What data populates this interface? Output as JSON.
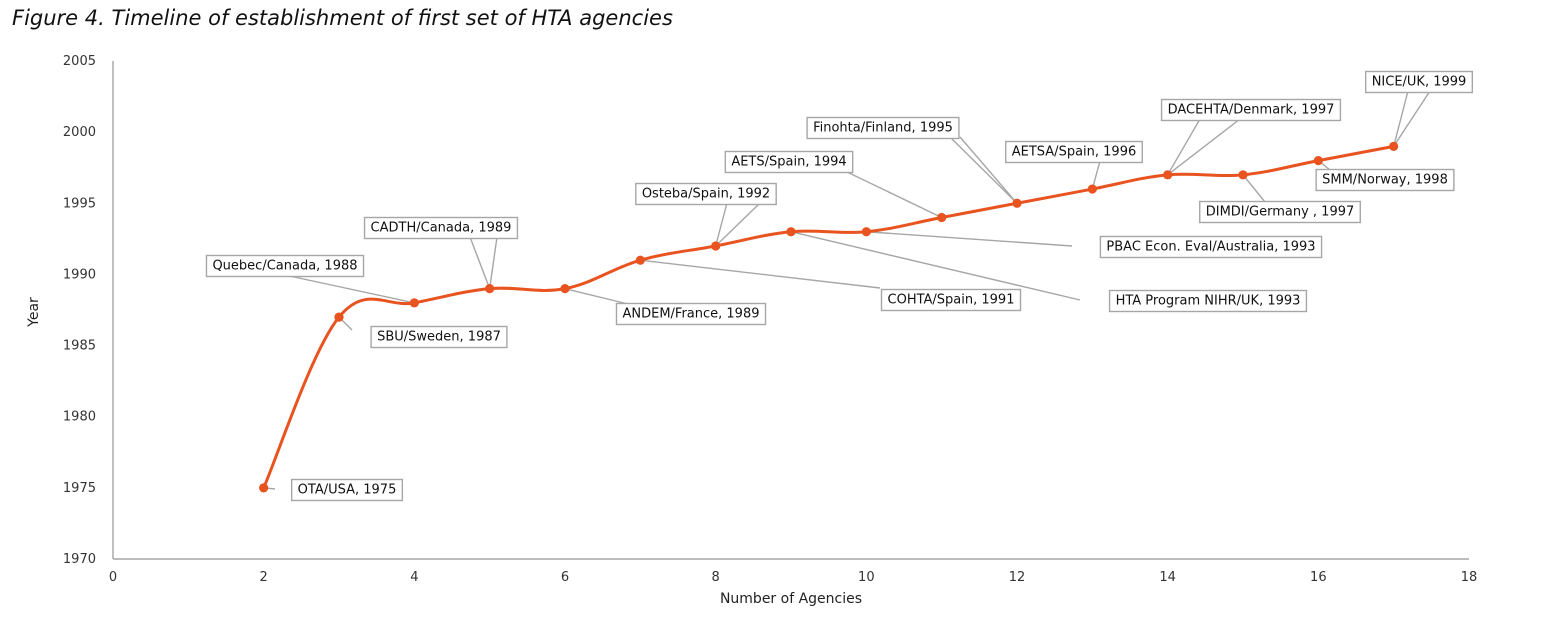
{
  "figure": {
    "title": "Figure 4. Timeline of establishment of first set of HTA agencies"
  },
  "chart_data": {
    "type": "line",
    "xlabel": "Number of Agencies",
    "ylabel": "Year",
    "xlim": [
      0,
      18
    ],
    "ylim": [
      1970,
      2005
    ],
    "x_ticks": [
      "0",
      "2",
      "4",
      "6",
      "8",
      "10",
      "12",
      "14",
      "16",
      "18"
    ],
    "y_ticks": [
      "1970",
      "1975",
      "1980",
      "1985",
      "1990",
      "1995",
      "2000",
      "2005"
    ],
    "grid": false,
    "line_color": "#e8531f",
    "points": [
      {
        "x": 2,
        "y": 1975
      },
      {
        "x": 3,
        "y": 1987
      },
      {
        "x": 4,
        "y": 1988
      },
      {
        "x": 5,
        "y": 1989
      },
      {
        "x": 6,
        "y": 1989
      },
      {
        "x": 7,
        "y": 1991
      },
      {
        "x": 8,
        "y": 1992
      },
      {
        "x": 9,
        "y": 1993
      },
      {
        "x": 10,
        "y": 1993
      },
      {
        "x": 11,
        "y": 1994
      },
      {
        "x": 12,
        "y": 1995
      },
      {
        "x": 13,
        "y": 1996
      },
      {
        "x": 14,
        "y": 1997
      },
      {
        "x": 15,
        "y": 1997
      },
      {
        "x": 16,
        "y": 1998
      },
      {
        "x": 17,
        "y": 1999
      }
    ],
    "annotations": [
      {
        "text": "OTA/USA, 1975",
        "x": 2,
        "y": 1975
      },
      {
        "text": "SBU/Sweden, 1987",
        "x": 3,
        "y": 1987
      },
      {
        "text": "Quebec/Canada, 1988",
        "x": 4,
        "y": 1988
      },
      {
        "text": "CADTH/Canada, 1989",
        "x": 5,
        "y": 1989
      },
      {
        "text": "ANDEM/France, 1989",
        "x": 6,
        "y": 1989
      },
      {
        "text": "COHTA/Spain, 1991",
        "x": 7,
        "y": 1991
      },
      {
        "text": "Osteba/Spain, 1992",
        "x": 8,
        "y": 1992
      },
      {
        "text": "HTA Program NIHR/UK, 1993",
        "x": 9,
        "y": 1993
      },
      {
        "text": "PBAC Econ. Eval/Australia, 1993",
        "x": 10,
        "y": 1993
      },
      {
        "text": "AETS/Spain, 1994",
        "x": 11,
        "y": 1994
      },
      {
        "text": "Finohta/Finland, 1995",
        "x": 12,
        "y": 1995
      },
      {
        "text": "AETSA/Spain, 1996",
        "x": 13,
        "y": 1996
      },
      {
        "text": "DACEHTA/Denmark, 1997",
        "x": 14,
        "y": 1997
      },
      {
        "text": "DIMDI/Germany , 1997",
        "x": 15,
        "y": 1997
      },
      {
        "text": "SMM/Norway, 1998",
        "x": 16,
        "y": 1998
      },
      {
        "text": "NICE/UK, 1999",
        "x": 17,
        "y": 1999
      }
    ]
  }
}
